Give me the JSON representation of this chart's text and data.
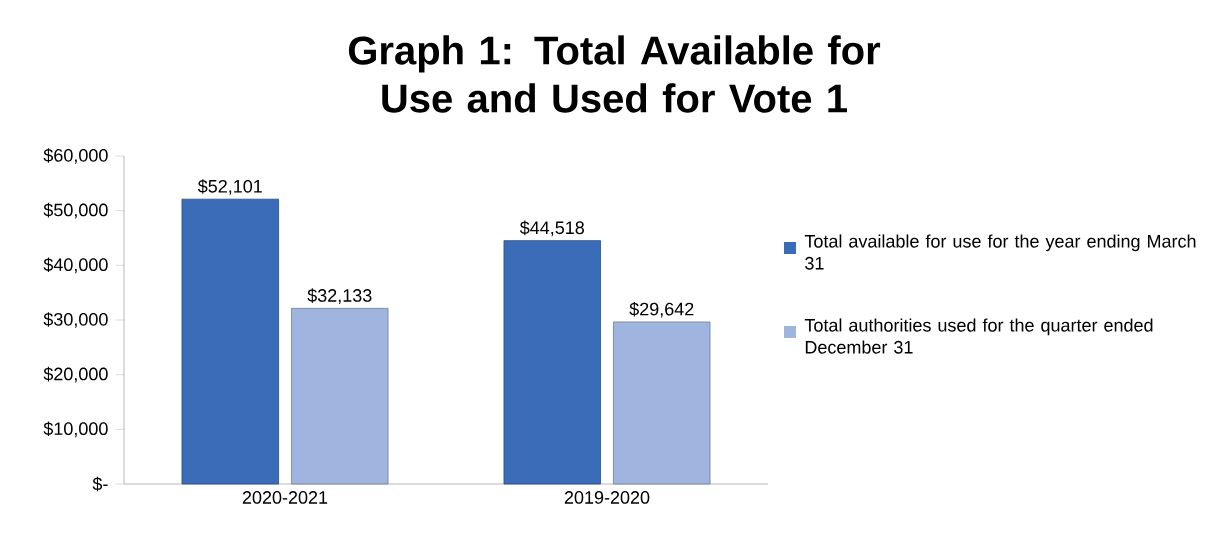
{
  "chart_data": {
    "type": "bar",
    "title": "Graph 1: Total Available for Use and Used for Vote 1",
    "categories": [
      "2020-2021",
      "2019-2020"
    ],
    "series": [
      {
        "name": "Total available for use for the year ending March 31",
        "color": "#3a6cb8",
        "values": [
          52101,
          44518
        ],
        "value_labels": [
          "$52,101",
          "$44,518"
        ]
      },
      {
        "name": "Total authorities used for the quarter ended December 31",
        "color": "#9fb4de",
        "values": [
          32133,
          29642
        ],
        "value_labels": [
          "$32,133",
          "$29,642"
        ]
      }
    ],
    "ylim": [
      0,
      60000
    ],
    "yticks": [
      {
        "value": 0,
        "label": "$-"
      },
      {
        "value": 10000,
        "label": "$10,000"
      },
      {
        "value": 20000,
        "label": "$20,000"
      },
      {
        "value": 30000,
        "label": "$30,000"
      },
      {
        "value": 40000,
        "label": "$40,000"
      },
      {
        "value": 50000,
        "label": "$50,000"
      },
      {
        "value": 60000,
        "label": "$60,000"
      }
    ],
    "legend": "right",
    "grid": false
  }
}
